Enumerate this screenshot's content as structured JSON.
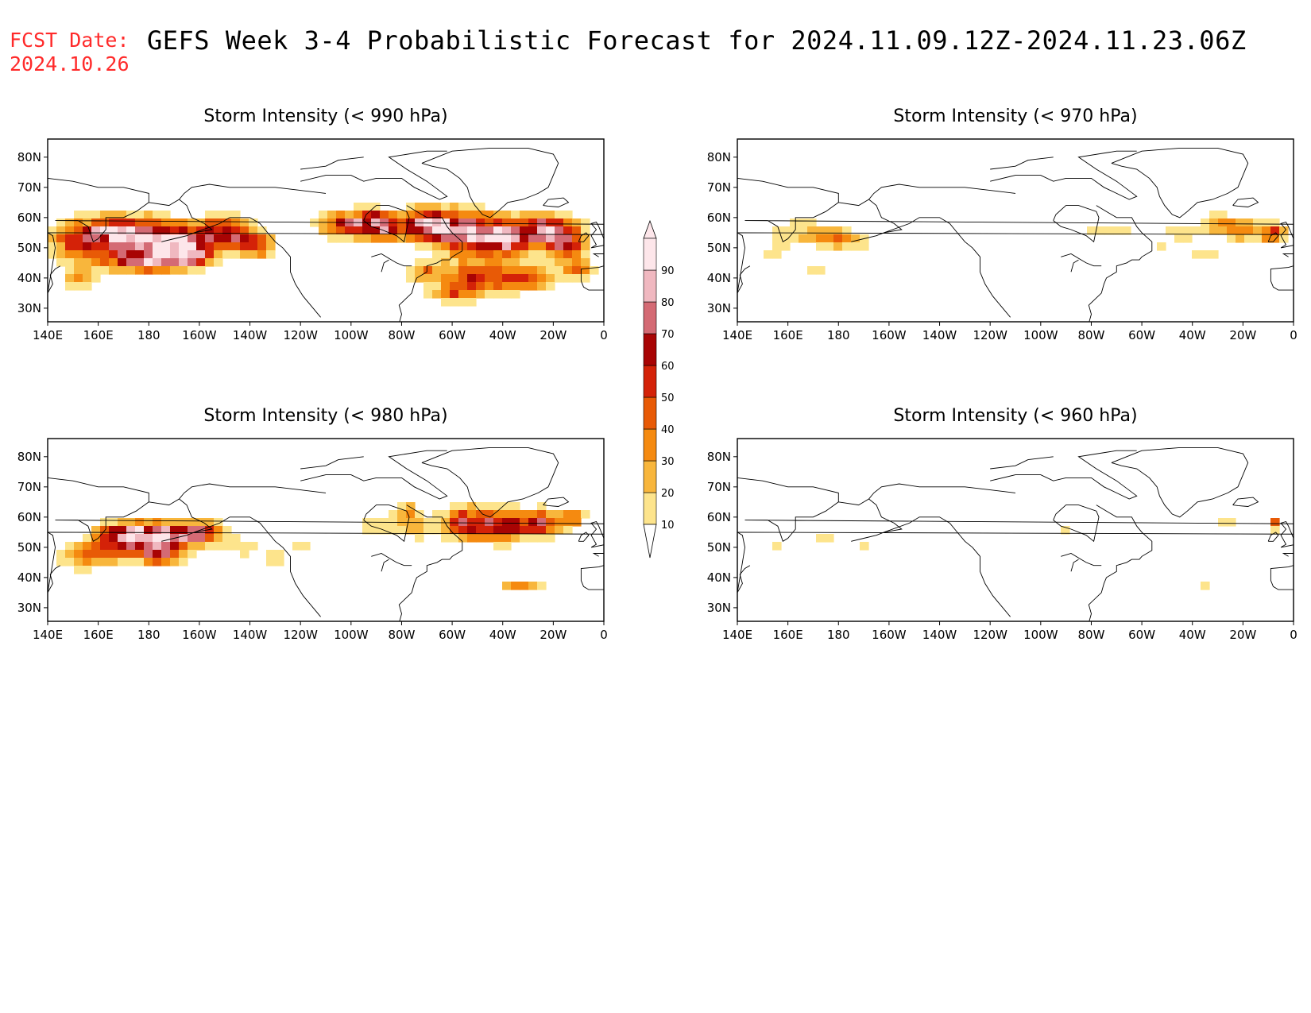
{
  "header": {
    "fcst_label": "FCST Date:",
    "fcst_date": "2024.10.26",
    "title": "GEFS Week 3-4 Probabilistic Forecast for 2024.11.09.12Z-2024.11.23.06Z"
  },
  "axes": {
    "lon_labels": [
      "140E",
      "160E",
      "180",
      "160W",
      "140W",
      "120W",
      "100W",
      "80W",
      "60W",
      "40W",
      "20W",
      "0"
    ],
    "lat_labels": [
      "80N",
      "70N",
      "60N",
      "50N",
      "40N",
      "30N"
    ]
  },
  "colorbar": {
    "levels": [
      "10",
      "20",
      "30",
      "40",
      "50",
      "60",
      "70",
      "80",
      "90"
    ],
    "colors": [
      "#fff7c4",
      "#fde48c",
      "#f8b63c",
      "#f58a10",
      "#e85a06",
      "#d42208",
      "#a80404",
      "#d46a74",
      "#f0b8c0",
      "#fde6ea"
    ]
  },
  "panels": [
    {
      "title": "Storm Intensity (< 990 hPa)",
      "threshold": "990 hPa",
      "coverage": "high"
    },
    {
      "title": "Storm Intensity (< 970 hPa)",
      "threshold": "970 hPa",
      "coverage": "low"
    },
    {
      "title": "Storm Intensity (< 980 hPa)",
      "threshold": "980 hPa",
      "coverage": "medium"
    },
    {
      "title": "Storm Intensity (< 960 hPa)",
      "threshold": "960 hPa",
      "coverage": "sparse"
    }
  ]
}
